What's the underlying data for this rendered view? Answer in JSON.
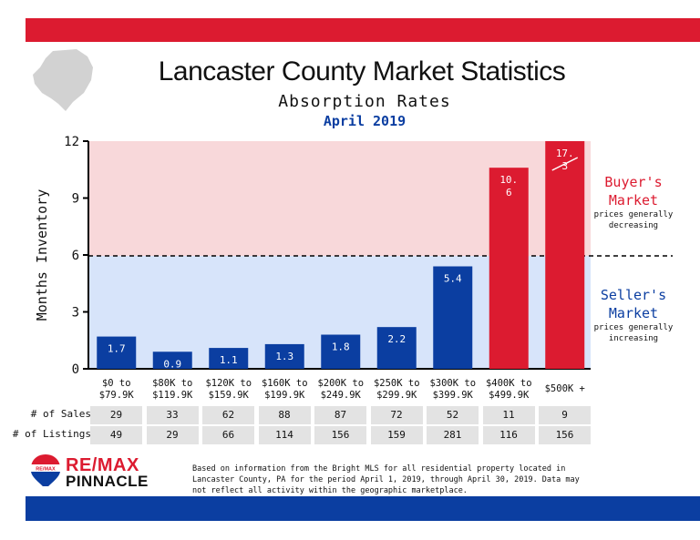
{
  "header": {
    "title": "Lancaster County Market Statistics",
    "subtitle": "Absorption Rates",
    "period": "April 2019"
  },
  "colors": {
    "red": "#dc1b30",
    "blue": "#0b3ea1",
    "buyer_zone": "#f8d8da",
    "seller_zone": "#d7e4fa"
  },
  "zones": {
    "buyer": {
      "title_line1": "Buyer's",
      "title_line2": "Market",
      "note_line1": "prices generally",
      "note_line2": "decreasing"
    },
    "seller": {
      "title_line1": "Seller's",
      "title_line2": "Market",
      "note_line1": "prices generally",
      "note_line2": "increasing"
    }
  },
  "chart_data": {
    "type": "bar",
    "ylabel": "Months Inventory",
    "ylim": [
      0,
      12
    ],
    "yticks": [
      0,
      3,
      6,
      9,
      12
    ],
    "threshold": 6,
    "categories": [
      [
        "$0 to",
        "$79.9K"
      ],
      [
        "$80K to",
        "$119.9K"
      ],
      [
        "$120K to",
        "$159.9K"
      ],
      [
        "$160K to",
        "$199.9K"
      ],
      [
        "$200K to",
        "$249.9K"
      ],
      [
        "$250K to",
        "$299.9K"
      ],
      [
        "$300K to",
        "$399.9K"
      ],
      [
        "$400K to",
        "$499.9K"
      ],
      [
        "$500K +"
      ]
    ],
    "values": [
      1.7,
      0.9,
      1.1,
      1.3,
      1.8,
      2.2,
      5.4,
      10.6,
      17.3
    ],
    "value_labels": [
      "1.7",
      "0.9",
      "1.1",
      "1.3",
      "1.8",
      "2.2",
      "5.4",
      "10.6",
      "17.3"
    ],
    "grid": false
  },
  "table": {
    "rows": [
      {
        "label": "# of Sales",
        "values": [
          "29",
          "33",
          "62",
          "88",
          "87",
          "72",
          "52",
          "11",
          "9"
        ]
      },
      {
        "label": "# of Listings",
        "values": [
          "49",
          "29",
          "66",
          "114",
          "156",
          "159",
          "281",
          "116",
          "156"
        ]
      }
    ]
  },
  "footer": {
    "brand": "RE/MAX",
    "brand_sub": "PINNACLE",
    "logo_text": "RE/MAX",
    "note_lines": [
      "Based on information from the Bright MLS for all residential property located in",
      "Lancaster County, PA for the period April 1, 2019, through April 30, 2019.  Data may",
      "not reflect all activity within the geographic marketplace."
    ]
  }
}
